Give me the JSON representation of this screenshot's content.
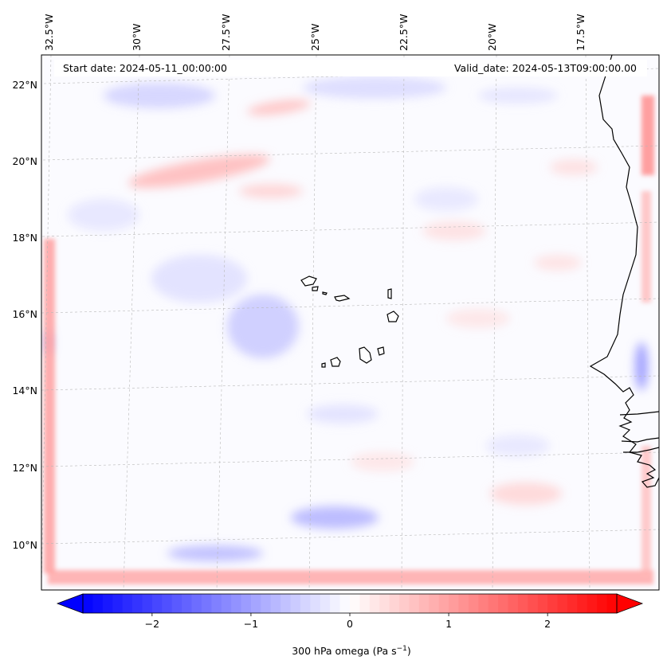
{
  "header": {
    "start_label": "Start date: 2024-05-11_00:00:00",
    "valid_label": "Valid_date: 2024-05-13T09:00:00.00"
  },
  "map": {
    "projection": "lambert-conformal",
    "field": "300 hPa omega",
    "gridlines": true,
    "lon_ticks": [
      "32.5°W",
      "30°W",
      "27.5°W",
      "25°W",
      "22.5°W",
      "20°W",
      "17.5°W"
    ],
    "lat_ticks": [
      "22°N",
      "20°N",
      "18°N",
      "16°N",
      "14°N",
      "12°N",
      "10°N"
    ],
    "features": [
      "coastline-west-africa",
      "cape-verde-islands"
    ]
  },
  "colorbar": {
    "label_main": "300 hPa omega (Pa s",
    "label_exp": "−1",
    "label_close": ")",
    "ticks": [
      "−2",
      "−1",
      "0",
      "1",
      "2"
    ],
    "tick_values": [
      -2,
      -1,
      0,
      1,
      2
    ],
    "range": [
      -2.7,
      2.7
    ],
    "colors": {
      "negative": "#0000ff",
      "zero": "#ffffff",
      "positive": "#ff0000"
    }
  }
}
